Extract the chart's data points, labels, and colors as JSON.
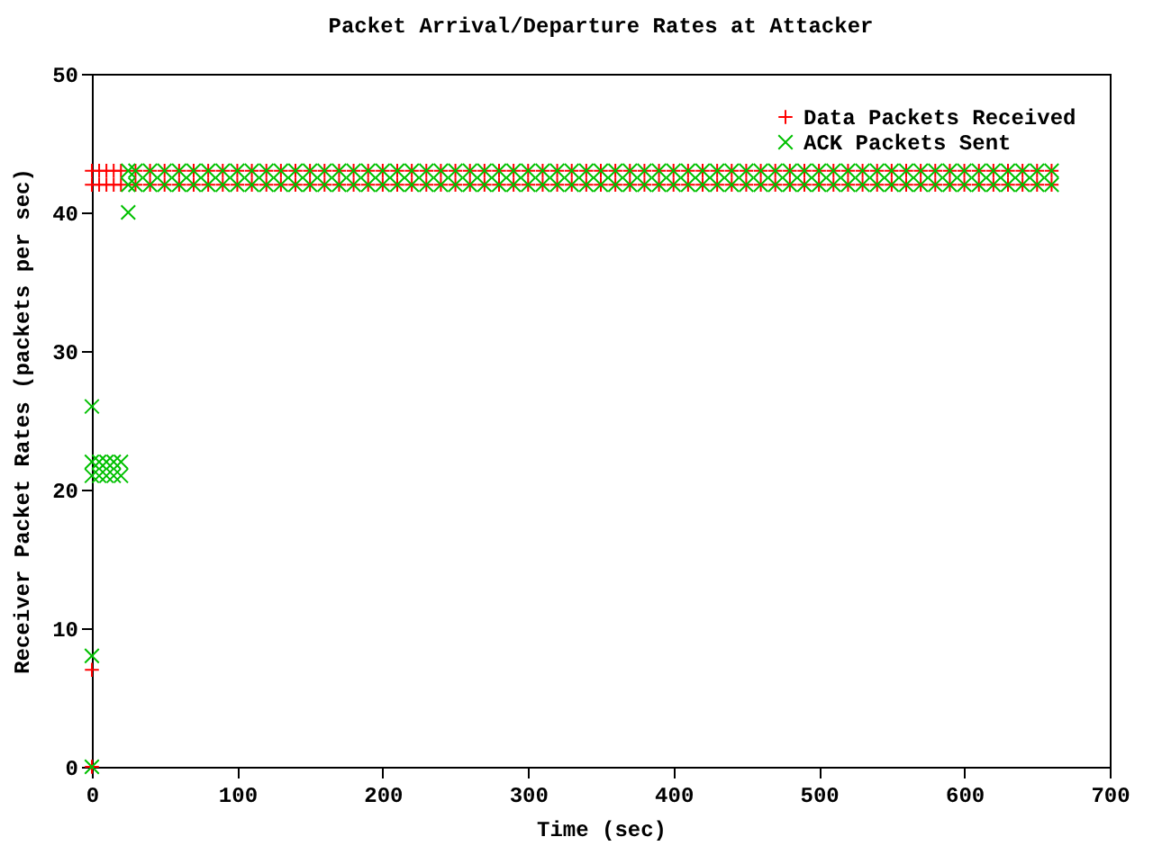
{
  "chart_data": {
    "type": "scatter",
    "title": "Packet Arrival/Departure Rates at Attacker",
    "xlabel": "Time (sec)",
    "ylabel": "Receiver Packet Rates (packets per sec)",
    "xlim": [
      0,
      700
    ],
    "xticks": [
      0,
      100,
      200,
      300,
      400,
      500,
      600,
      700
    ],
    "ylim": [
      0,
      50
    ],
    "yticks": [
      0,
      10,
      20,
      30,
      40,
      50
    ],
    "grid": false,
    "legend": "top right",
    "series": [
      {
        "name": "Data Packets Received",
        "color": "#ff0000",
        "marker": "cross",
        "x": [
          0,
          0,
          0,
          5,
          10,
          15,
          20,
          30,
          40,
          50,
          60,
          70,
          80,
          90,
          100,
          110,
          120,
          130,
          140,
          150,
          160,
          170,
          180,
          190,
          200,
          210,
          220,
          230,
          240,
          250,
          260,
          270,
          280,
          290,
          300,
          310,
          320,
          330,
          340,
          350,
          360,
          370,
          380,
          390,
          400,
          410,
          420,
          430,
          440,
          450,
          460,
          470,
          480,
          490,
          500,
          510,
          520,
          530,
          540,
          550,
          560,
          570,
          580,
          590,
          600,
          610,
          620,
          630,
          640,
          650,
          660,
          0,
          5,
          10,
          15,
          20,
          30,
          40,
          50,
          60,
          70,
          80,
          90,
          100,
          110,
          120,
          130,
          140,
          150,
          160,
          170,
          180,
          190,
          200,
          210,
          220,
          230,
          240,
          250,
          260,
          270,
          280,
          290,
          300,
          310,
          320,
          330,
          340,
          350,
          360,
          370,
          380,
          390,
          400,
          410,
          420,
          430,
          440,
          450,
          460,
          470,
          480,
          490,
          500,
          510,
          520,
          530,
          540,
          550,
          560,
          570,
          580,
          590,
          600,
          610,
          620,
          630,
          640,
          650,
          660
        ],
        "values": [
          0,
          7,
          42,
          42,
          42,
          42,
          42,
          42,
          42,
          42,
          42,
          42,
          42,
          42,
          42,
          42,
          42,
          42,
          42,
          42,
          42,
          42,
          42,
          42,
          42,
          42,
          42,
          42,
          42,
          42,
          42,
          42,
          42,
          42,
          42,
          42,
          42,
          42,
          42,
          42,
          42,
          42,
          42,
          42,
          42,
          42,
          42,
          42,
          42,
          42,
          42,
          42,
          42,
          42,
          42,
          42,
          42,
          42,
          42,
          42,
          42,
          42,
          42,
          42,
          42,
          42,
          42,
          42,
          42,
          42,
          42,
          43,
          43,
          43,
          43,
          43,
          43,
          43,
          43,
          43,
          43,
          43,
          43,
          43,
          43,
          43,
          43,
          43,
          43,
          43,
          43,
          43,
          43,
          43,
          43,
          43,
          43,
          43,
          43,
          43,
          43,
          43,
          43,
          43,
          43,
          43,
          43,
          43,
          43,
          43,
          43,
          43,
          43,
          43,
          43,
          43,
          43,
          43,
          43,
          43,
          43,
          43,
          43,
          43,
          43,
          43,
          43,
          43,
          43,
          43,
          43,
          43,
          43,
          43,
          43,
          43,
          43,
          43,
          43,
          43
        ]
      },
      {
        "name": "ACK Packets Sent",
        "color": "#00c000",
        "marker": "x",
        "x": [
          0,
          0,
          0,
          25,
          0,
          5,
          10,
          15,
          20,
          0,
          5,
          10,
          15,
          20,
          25,
          30,
          40,
          50,
          60,
          70,
          80,
          90,
          100,
          110,
          120,
          130,
          140,
          150,
          160,
          170,
          180,
          190,
          200,
          210,
          220,
          230,
          240,
          250,
          260,
          270,
          280,
          290,
          300,
          310,
          320,
          330,
          340,
          350,
          360,
          370,
          380,
          390,
          400,
          410,
          420,
          430,
          440,
          450,
          460,
          470,
          480,
          490,
          500,
          510,
          520,
          530,
          540,
          550,
          560,
          570,
          580,
          590,
          600,
          610,
          620,
          630,
          640,
          650,
          660,
          25,
          30,
          40,
          50,
          60,
          70,
          80,
          90,
          100,
          110,
          120,
          130,
          140,
          150,
          160,
          170,
          180,
          190,
          200,
          210,
          220,
          230,
          240,
          250,
          260,
          270,
          280,
          290,
          300,
          310,
          320,
          330,
          340,
          350,
          360,
          370,
          380,
          390,
          400,
          410,
          420,
          430,
          440,
          450,
          460,
          470,
          480,
          490,
          500,
          510,
          520,
          530,
          540,
          550,
          560,
          570,
          580,
          590,
          600,
          610,
          620,
          630,
          640,
          650,
          660
        ],
        "values": [
          0,
          8,
          26,
          40,
          21,
          21,
          21,
          21,
          21,
          22,
          22,
          22,
          22,
          22,
          42,
          42,
          42,
          42,
          42,
          42,
          42,
          42,
          42,
          42,
          42,
          42,
          42,
          42,
          42,
          42,
          42,
          42,
          42,
          42,
          42,
          42,
          42,
          42,
          42,
          42,
          42,
          42,
          42,
          42,
          42,
          42,
          42,
          42,
          42,
          42,
          42,
          42,
          42,
          42,
          42,
          42,
          42,
          42,
          42,
          42,
          42,
          42,
          42,
          42,
          42,
          42,
          42,
          42,
          42,
          42,
          42,
          42,
          42,
          42,
          42,
          42,
          42,
          42,
          42,
          43,
          43,
          43,
          43,
          43,
          43,
          43,
          43,
          43,
          43,
          43,
          43,
          43,
          43,
          43,
          43,
          43,
          43,
          43,
          43,
          43,
          43,
          43,
          43,
          43,
          43,
          43,
          43,
          43,
          43,
          43,
          43,
          43,
          43,
          43,
          43,
          43,
          43,
          43,
          43,
          43,
          43,
          43,
          43,
          43,
          43,
          43,
          43,
          43,
          43,
          43,
          43,
          43,
          43,
          43,
          43,
          43,
          43,
          43,
          43,
          43,
          43,
          43,
          43,
          43
        ]
      }
    ]
  }
}
